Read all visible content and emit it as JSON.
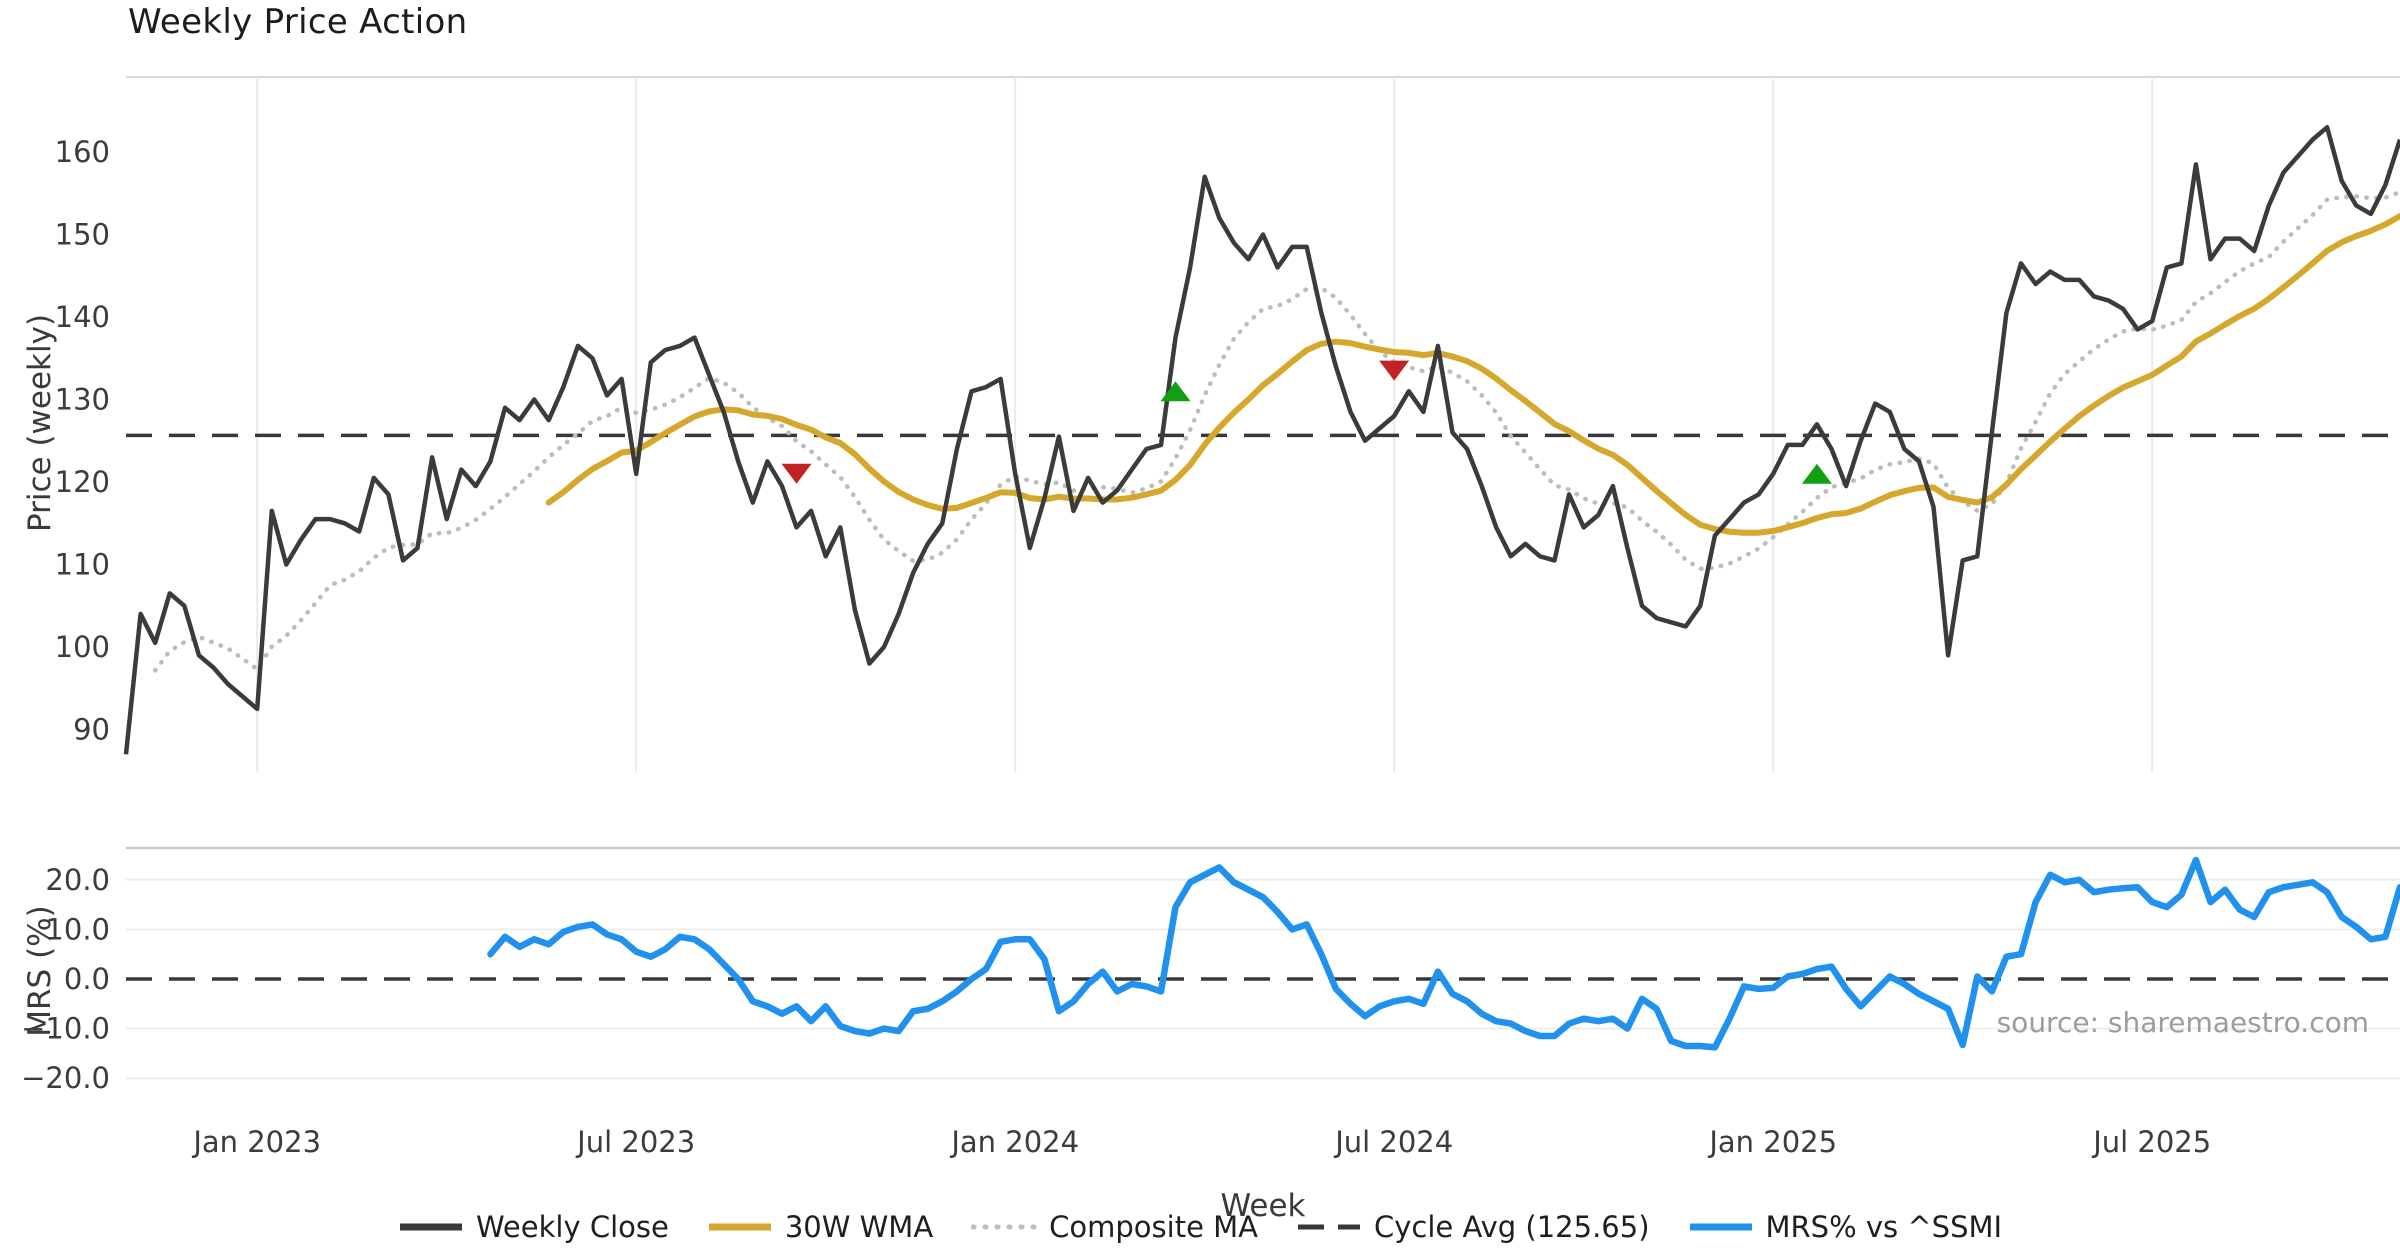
{
  "title": "Weekly Price Action",
  "source_note": "source: sharemaestro.com",
  "colors": {
    "close": "#3b3b3b",
    "wma": "#d5a72c",
    "composite": "#bdbdbd",
    "cycle": "#383838",
    "mrs": "#2191ee",
    "sell_marker": "#c32222",
    "buy_marker": "#12a012",
    "grid": "#eaeaec",
    "hgrid": "#ededed",
    "spine": "#c9c9c9",
    "top_spine": "#d9d9d9"
  },
  "legend": {
    "items": [
      {
        "label": "Weekly Close",
        "style": "solid",
        "color": "#3b3b3b"
      },
      {
        "label": "30W WMA",
        "style": "solid",
        "color": "#d5a72c"
      },
      {
        "label": "Composite MA",
        "style": "dotted",
        "color": "#bdbdbd"
      },
      {
        "label": "Cycle Avg (125.65)",
        "style": "dashed",
        "color": "#383838"
      },
      {
        "label": "MRS% vs ^SSMI",
        "style": "solid",
        "color": "#2191ee"
      }
    ]
  },
  "chart_data": [
    {
      "panel": "price",
      "type": "line",
      "title": "Weekly Price Action",
      "xlabel": "Week",
      "ylabel": "Price (weekly)",
      "ylim": [
        84.8,
        169.3
      ],
      "yticks": [
        90,
        100,
        110,
        120,
        130,
        140,
        150,
        160
      ],
      "x_tick_labels": [
        "Jan 2023",
        "Jul 2023",
        "Jan 2024",
        "Jul 2024",
        "Jan 2025",
        "Jul 2025"
      ],
      "x_tick_weeks": [
        9,
        35,
        61,
        87,
        113,
        139
      ],
      "cycle_avg": 125.65,
      "series": [
        {
          "name": "Weekly Close",
          "values": [
            87,
            104,
            100.5,
            106.5,
            105,
            99,
            97.5,
            95.5,
            94,
            92.5,
            116.5,
            110,
            113,
            115.5,
            115.5,
            115,
            114,
            120.5,
            118.5,
            110.5,
            112,
            123,
            115.5,
            121.5,
            119.5,
            122.5,
            129,
            127.5,
            130,
            127.5,
            131.5,
            136.5,
            135,
            130.5,
            132.5,
            121,
            134.5,
            136,
            136.5,
            137.5,
            133,
            128.5,
            122.5,
            117.5,
            122.5,
            119.5,
            114.5,
            116.5,
            111,
            114.5,
            104.5,
            98,
            100,
            104,
            109,
            112.5,
            115,
            124,
            131,
            131.5,
            132.5,
            121,
            112,
            118,
            125.5,
            116.5,
            120.5,
            117.5,
            119,
            121.5,
            124,
            124.5,
            137.5,
            146,
            157,
            152,
            149,
            147,
            150,
            146,
            148.5,
            148.5,
            140.5,
            134,
            128.5,
            125,
            126.5,
            128,
            131,
            128.5,
            136.5,
            126,
            124,
            119.5,
            114.5,
            111,
            112.5,
            111,
            110.5,
            118.5,
            114.5,
            116,
            119.5,
            112,
            105,
            103.5,
            103,
            102.5,
            105,
            113.5,
            115.5,
            117.5,
            118.5,
            121,
            124.5,
            124.5,
            127,
            124,
            119.5,
            125,
            129.5,
            128.5,
            124,
            122.5,
            117,
            99,
            110.5,
            111,
            126,
            140.5,
            146.5,
            144,
            145.5,
            144.5,
            144.5,
            142.5,
            142,
            141,
            138.5,
            139.5,
            146,
            146.5,
            158.5,
            147,
            149.5,
            149.5,
            148,
            153.5,
            157.5,
            159.5,
            161.5,
            163,
            156.5,
            153.5,
            152.5,
            156,
            161.5
          ]
        },
        {
          "name": "30W WMA",
          "derived": "wma",
          "window": 30
        },
        {
          "name": "Composite MA",
          "derived": "sma_composite",
          "windows": [
            5,
            10,
            20
          ]
        },
        {
          "name": "Cycle Avg (125.65)",
          "type": "hline",
          "value": 125.65
        }
      ],
      "markers": {
        "sell": [
          {
            "week": 46,
            "price": 121
          },
          {
            "week": 87,
            "price": 133.5
          }
        ],
        "buy": [
          {
            "week": 72,
            "price": 131
          },
          {
            "week": 116,
            "price": 121
          }
        ]
      }
    },
    {
      "panel": "mrs",
      "type": "line",
      "ylabel": "MRS (%)",
      "ylim": [
        -23.5,
        26.5
      ],
      "yticks": [
        20,
        10,
        0,
        -10,
        -20
      ],
      "ytick_labels": [
        "20.0",
        "10.0",
        "0.0",
        "−10.0",
        "−20.0"
      ],
      "zero_line": 0,
      "series": [
        {
          "name": "MRS% vs ^SSMI",
          "start_week": 25,
          "values": [
            5,
            8.5,
            6.5,
            8,
            7,
            9.5,
            10.5,
            11,
            9,
            8,
            5.5,
            4.5,
            6,
            8.5,
            8,
            6,
            3,
            0,
            -4.5,
            -5.5,
            -7,
            -5.5,
            -8.5,
            -5.5,
            -9.5,
            -10.5,
            -11,
            -10,
            -10.5,
            -6.5,
            -6,
            -4.5,
            -2.5,
            0,
            2,
            7.5,
            8,
            8,
            4,
            -6.5,
            -4.5,
            -1,
            1.5,
            -2.5,
            -1,
            -1.5,
            -2.5,
            14.5,
            19.5,
            21,
            22.5,
            19.5,
            18,
            16.5,
            13.5,
            10,
            11,
            5,
            -2,
            -5,
            -7.5,
            -5.5,
            -4.5,
            -4,
            -5,
            1.5,
            -3,
            -4.5,
            -7,
            -8.5,
            -9,
            -10.5,
            -11.5,
            -11.5,
            -9,
            -8,
            -8.5,
            -8,
            -10,
            -4,
            -6,
            -12.5,
            -13.5,
            -13.5,
            -13.8,
            -8,
            -1.5,
            -2,
            -1.8,
            0.5,
            1,
            2,
            2.5,
            -2,
            -5.5,
            -2.5,
            0.5,
            -1,
            -3,
            -4.5,
            -6,
            -13.3,
            0.5,
            -2.5,
            4.5,
            5,
            15.5,
            21,
            19.5,
            20,
            17.5,
            18,
            18.3,
            18.5,
            15.5,
            14.5,
            17,
            24,
            15.5,
            18,
            14,
            12.5,
            17.5,
            18.5,
            19,
            19.5,
            17.5,
            12.5,
            10.5,
            8,
            8.5,
            18.5
          ]
        }
      ]
    }
  ]
}
